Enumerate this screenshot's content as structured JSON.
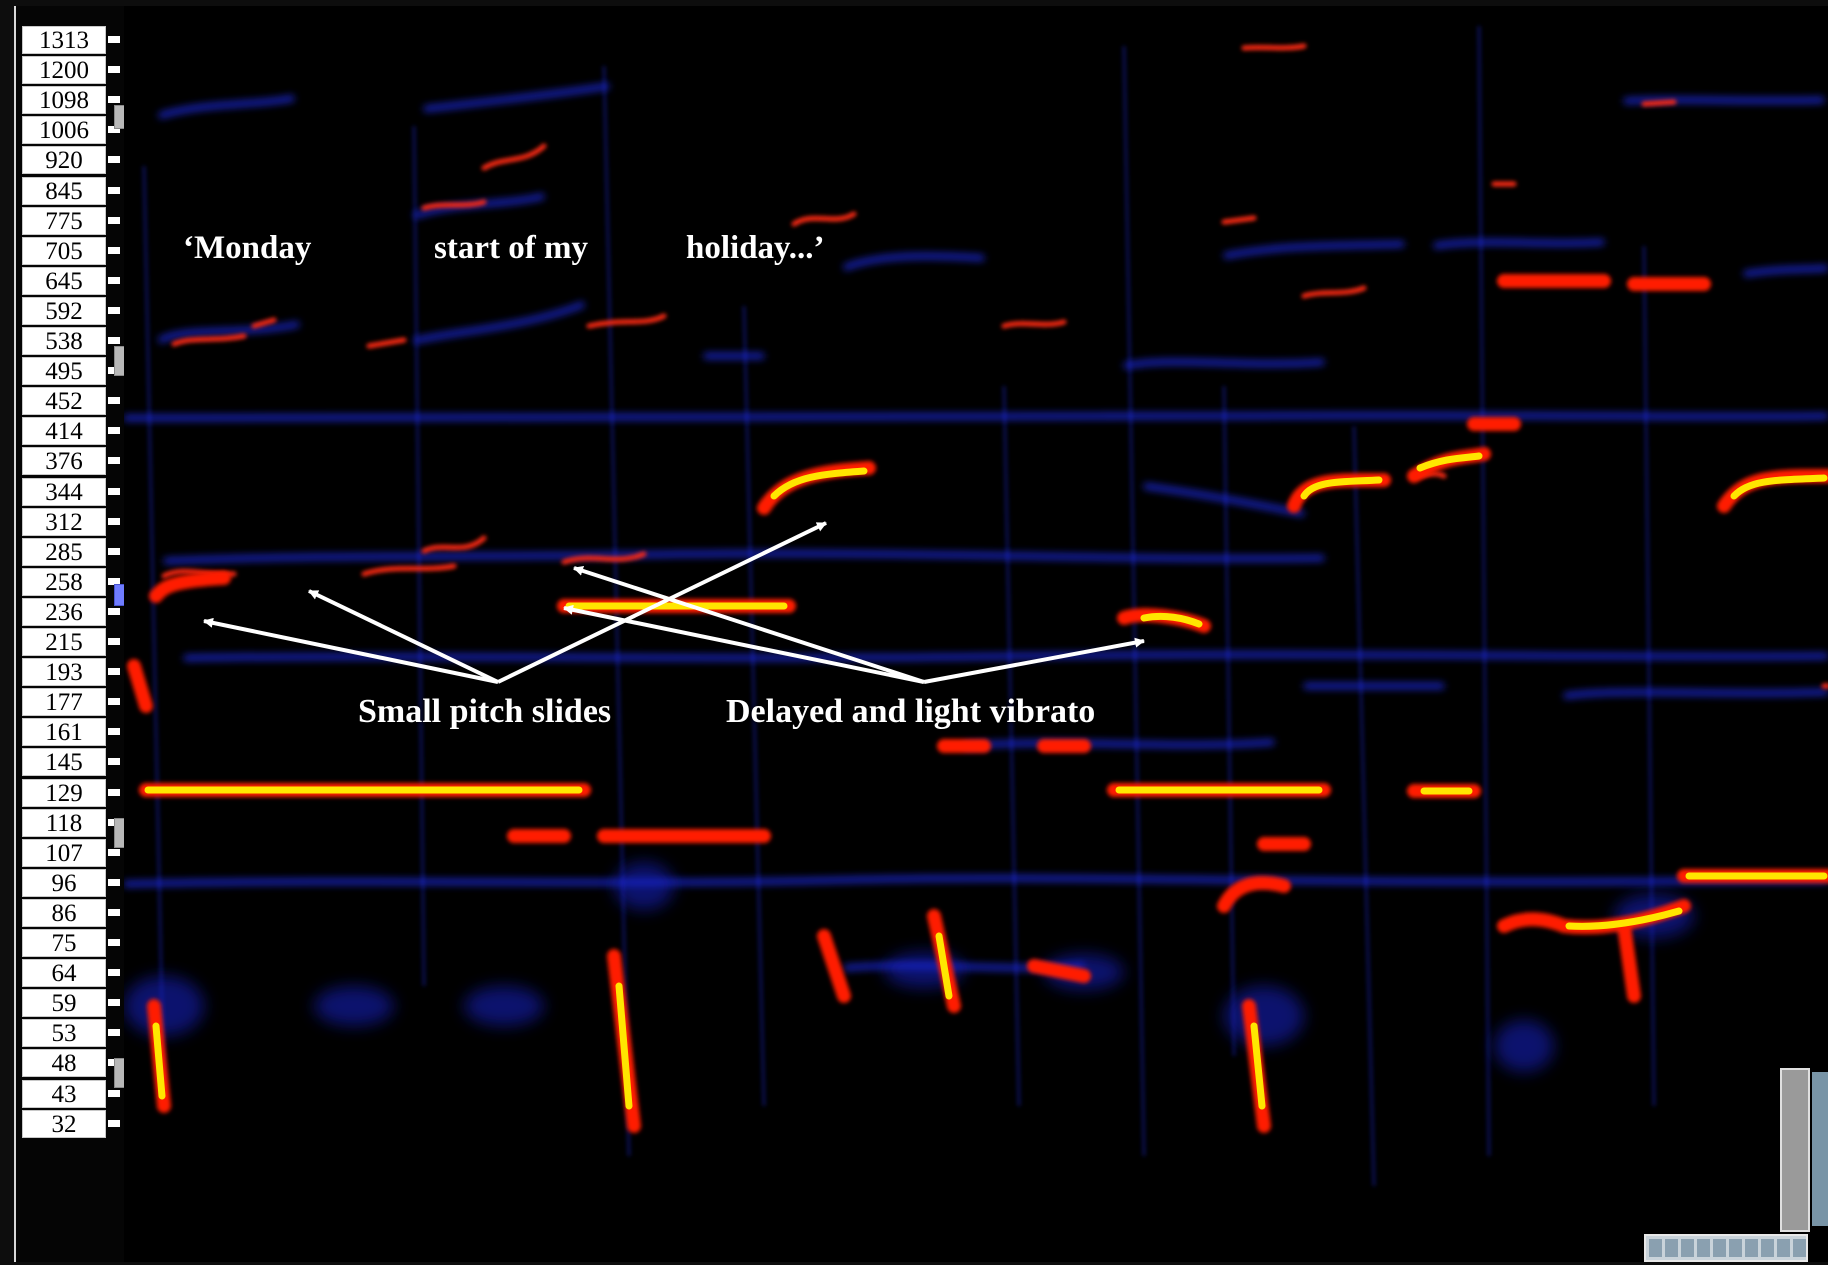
{
  "frequency_axis": {
    "labels": [
      "1313",
      "1200",
      "1098",
      "1006",
      "920",
      "845",
      "775",
      "705",
      "645",
      "592",
      "538",
      "495",
      "452",
      "414",
      "376",
      "344",
      "312",
      "285",
      "258",
      "236",
      "215",
      "193",
      "177",
      "161",
      "145",
      "129",
      "118",
      "107",
      "96",
      "86",
      "75",
      "64",
      "59",
      "53",
      "48",
      "43",
      "32"
    ]
  },
  "lyrics": {
    "word_1": "‘Monday",
    "word_2": "start of my",
    "word_3": "holiday...’"
  },
  "annotations": {
    "small_pitch_slides": "Small pitch slides",
    "delayed_vibrato": "Delayed and light vibrato"
  },
  "colors": {
    "background": "#000000",
    "low_energy": "#1e2aff",
    "mid_energy": "#ff2a00",
    "high_energy": "#ffe600",
    "arrow": "#ffffff"
  }
}
